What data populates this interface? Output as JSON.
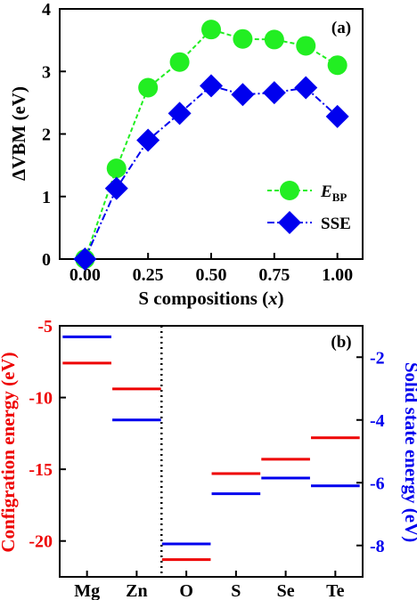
{
  "chart_data": [
    {
      "panel_label": "(a)",
      "type": "line",
      "xlabel_main": "S compositions (",
      "xlabel_var": "x",
      "xlabel_close": ")",
      "ylabel": "ΔVBM (eV)",
      "xlim": [
        -0.1,
        1.1
      ],
      "ylim": [
        0,
        4
      ],
      "xticks": [
        "0.00",
        "0.25",
        "0.50",
        "0.75",
        "1.00"
      ],
      "xtick_values": [
        0,
        0.25,
        0.5,
        0.75,
        1.0
      ],
      "yticks": [
        "0",
        "1",
        "2",
        "3",
        "4"
      ],
      "ytick_values": [
        0,
        1,
        2,
        3,
        4
      ],
      "legend_position": "bottom-right",
      "series": [
        {
          "name_main": "E",
          "name_sub": "BP",
          "marker": "circle",
          "line_style": "dashed",
          "color": "#22ee22",
          "x": [
            0,
            0.125,
            0.25,
            0.375,
            0.5,
            0.625,
            0.75,
            0.875,
            1.0
          ],
          "y": [
            0.0,
            1.45,
            2.74,
            3.15,
            3.67,
            3.52,
            3.51,
            3.41,
            3.1
          ]
        },
        {
          "name_main": "SSE",
          "marker": "diamond",
          "line_style": "dash-dot",
          "color": "#0000ee",
          "x": [
            0,
            0.125,
            0.25,
            0.375,
            0.5,
            0.625,
            0.75,
            0.875,
            1.0
          ],
          "y": [
            0.0,
            1.13,
            1.9,
            2.33,
            2.77,
            2.63,
            2.66,
            2.74,
            2.28
          ]
        }
      ]
    },
    {
      "panel_label": "(b)",
      "type": "level_diagram",
      "ylabel_left": "Configration energy (eV)",
      "ylabel_right": "Solid state energy (eV)",
      "left_color": "#ee0000",
      "right_color": "#0000ee",
      "left_ylim": [
        -22.5,
        -5
      ],
      "right_ylim": [
        -9.0,
        -1.0
      ],
      "left_yticks": [
        "-5",
        "-10",
        "-15",
        "-20"
      ],
      "left_ytick_values": [
        -5,
        -10,
        -15,
        -20
      ],
      "right_yticks": [
        "-2",
        "-4",
        "-6",
        "-8"
      ],
      "right_ytick_values": [
        -2,
        -4,
        -6,
        -8
      ],
      "categories": [
        "Mg",
        "Zn",
        "O",
        "S",
        "Se",
        "Te"
      ],
      "divider_after_category": "Zn",
      "configuration_energy": [
        -7.6,
        -9.4,
        -21.3,
        -15.3,
        -14.3,
        -12.8
      ],
      "solid_state_energy": [
        -1.35,
        -4.0,
        -7.95,
        -6.35,
        -5.85,
        -6.1
      ]
    }
  ]
}
